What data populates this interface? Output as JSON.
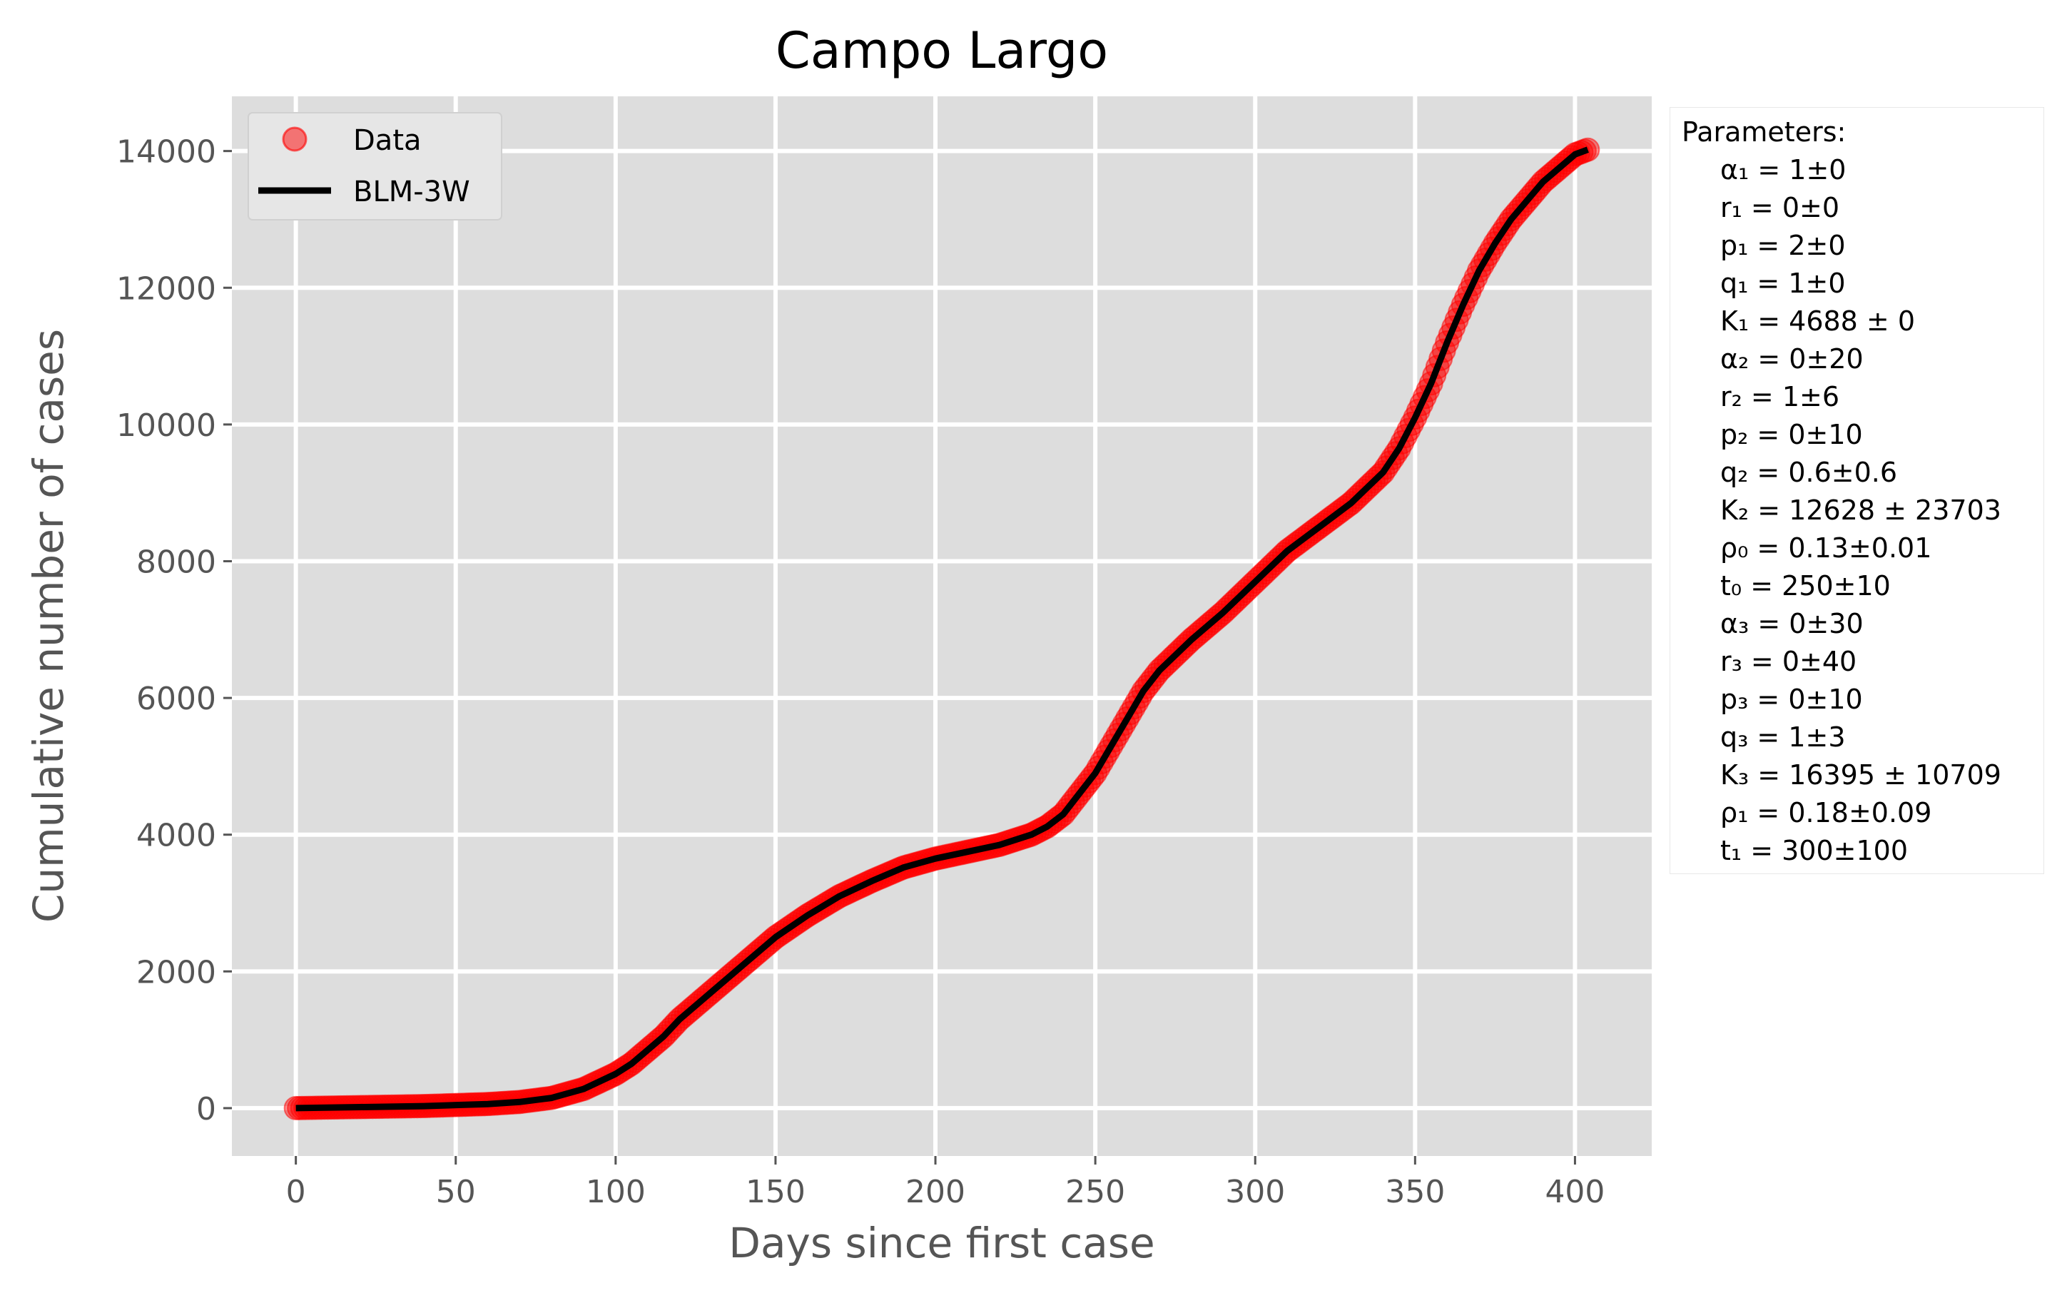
{
  "chart_data": {
    "type": "scatter",
    "title": "Campo Largo",
    "xlabel": "Days since first case",
    "ylabel": "Cumulative  number of cases",
    "xlim": [
      -20,
      424
    ],
    "ylim": [
      -700,
      14800
    ],
    "xticks": [
      0,
      50,
      100,
      150,
      200,
      250,
      300,
      350,
      400
    ],
    "yticks": [
      0,
      2000,
      4000,
      6000,
      8000,
      10000,
      12000,
      14000
    ],
    "grid": true,
    "legend_position": "top-left",
    "colors": {
      "data": "#ff0000",
      "fit": "#000000",
      "background": "#dddddd",
      "grid": "#ffffff"
    },
    "series": [
      {
        "name": "Data",
        "kind": "scatter",
        "x": [
          0,
          20,
          40,
          60,
          70,
          80,
          90,
          100,
          105,
          110,
          115,
          120,
          130,
          140,
          150,
          160,
          170,
          180,
          190,
          200,
          210,
          220,
          230,
          235,
          240,
          245,
          250,
          255,
          260,
          265,
          270,
          280,
          290,
          300,
          310,
          320,
          330,
          340,
          345,
          350,
          355,
          360,
          365,
          370,
          375,
          380,
          390,
          400,
          404
        ],
        "y": [
          0,
          15,
          30,
          60,
          90,
          150,
          280,
          500,
          650,
          850,
          1050,
          1300,
          1700,
          2100,
          2500,
          2820,
          3100,
          3320,
          3520,
          3650,
          3750,
          3850,
          4000,
          4120,
          4300,
          4600,
          4900,
          5300,
          5700,
          6100,
          6400,
          6850,
          7250,
          7700,
          8150,
          8500,
          8850,
          9300,
          9650,
          10100,
          10600,
          11200,
          11750,
          12250,
          12650,
          13000,
          13550,
          13950,
          14020
        ]
      },
      {
        "name": "BLM-3W",
        "kind": "line",
        "x": [
          0,
          20,
          40,
          60,
          70,
          80,
          90,
          100,
          105,
          110,
          115,
          120,
          130,
          140,
          150,
          160,
          170,
          180,
          190,
          200,
          210,
          220,
          230,
          235,
          240,
          245,
          250,
          255,
          260,
          265,
          270,
          280,
          290,
          300,
          310,
          320,
          330,
          340,
          345,
          350,
          355,
          360,
          365,
          370,
          375,
          380,
          390,
          400,
          404
        ],
        "y": [
          0,
          15,
          30,
          60,
          90,
          150,
          280,
          500,
          650,
          850,
          1050,
          1300,
          1700,
          2100,
          2500,
          2820,
          3100,
          3320,
          3520,
          3650,
          3750,
          3850,
          4000,
          4120,
          4300,
          4600,
          4900,
          5300,
          5700,
          6100,
          6400,
          6850,
          7250,
          7700,
          8150,
          8500,
          8850,
          9300,
          9650,
          10100,
          10600,
          11200,
          11750,
          12250,
          12650,
          13000,
          13550,
          13950,
          14020
        ]
      }
    ],
    "parameters": {
      "title": "Parameters:",
      "lines": [
        "α₁ = 1±0",
        "r₁ = 0±0",
        "p₁ = 2±0",
        "q₁ = 1±0",
        "K₁ = 4688 ± 0",
        "α₂ = 0±20",
        "r₂ = 1±6",
        "p₂ = 0±10",
        "q₂ = 0.6±0.6",
        "K₂ = 12628 ± 23703",
        "ρ₀ = 0.13±0.01",
        "t₀ = 250±10",
        "α₃ = 0±30",
        "r₃ = 0±40",
        "p₃ = 0±10",
        "q₃ = 1±3",
        "K₃ = 16395 ± 10709",
        "ρ₁ = 0.18±0.09",
        "t₁ = 300±100"
      ]
    }
  }
}
